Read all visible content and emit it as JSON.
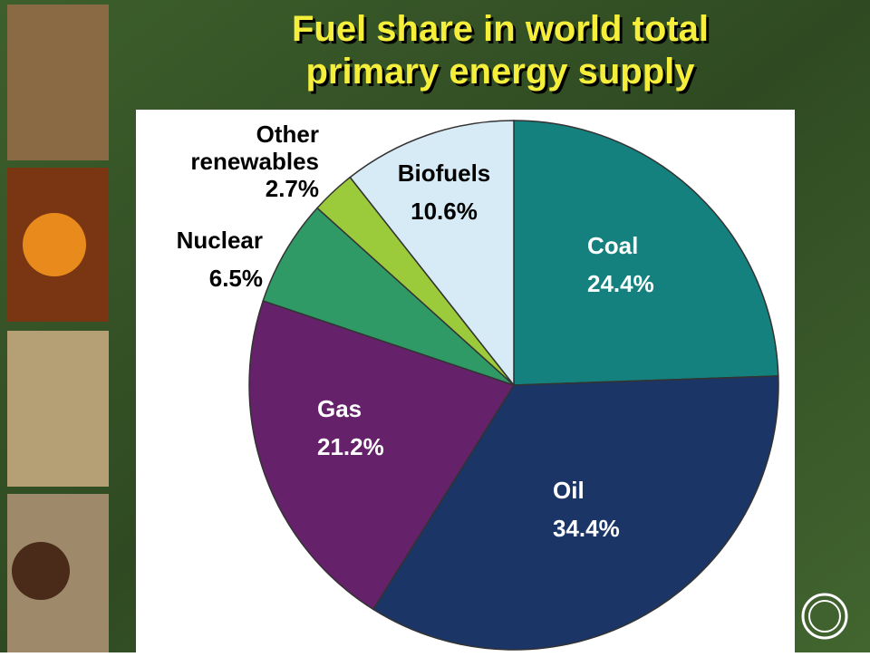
{
  "chart_data": {
    "type": "pie",
    "title": [
      "Fuel share in world total",
      "primary energy supply"
    ],
    "categories": [
      "Coal",
      "Oil",
      "Gas",
      "Nuclear",
      "Other renewables",
      "Biofuels"
    ],
    "values": [
      24.4,
      34.4,
      21.2,
      6.5,
      2.7,
      10.6
    ],
    "value_labels": [
      "24.4%",
      "34.4%",
      "21.2%",
      "6.5%",
      "2.7%",
      "10.6%"
    ],
    "colors": [
      "#14817f",
      "#1b3566",
      "#65216a",
      "#2f9a66",
      "#9bcb3b",
      "#d6ebf5"
    ]
  }
}
